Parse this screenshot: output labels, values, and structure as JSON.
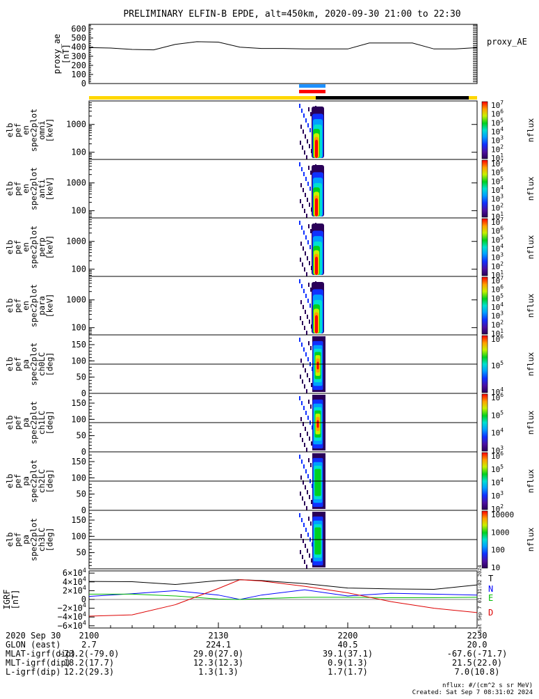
{
  "title": "PRELIMINARY ELFIN-B EPDE, alt=450km, 2020-09-30 21:00 to 22:30",
  "colors": {
    "state_yellow": "#FFD700",
    "state_black": "#000000",
    "bar_blue": "#1E90FF",
    "bar_red": "#FF0000",
    "T": "#000000",
    "N": "#0000FF",
    "E": "#00BB00",
    "D": "#DD0000"
  },
  "chart_data": [
    {
      "type": "line",
      "panel": "proxy_ae",
      "ylabel_lines": [
        "proxy_ae",
        "[nT]"
      ],
      "legend": "proxy_AE",
      "ylim": [
        0,
        650
      ],
      "yticks": [
        "0",
        "100",
        "200",
        "300",
        "400",
        "500",
        "600"
      ],
      "x_minutes": [
        0,
        5,
        10,
        15,
        20,
        25,
        30,
        35,
        40,
        45,
        50,
        55,
        60,
        65,
        70,
        75,
        80,
        85,
        90
      ],
      "y": [
        395,
        390,
        375,
        370,
        430,
        460,
        455,
        400,
        385,
        385,
        380,
        380,
        380,
        445,
        445,
        445,
        380,
        380,
        395
      ]
    },
    {
      "type": "heatmap",
      "panel": "spec_omni",
      "ylabel_lines": [
        "elb",
        "pef",
        "en",
        "spec2plot",
        "omni",
        "[keV]"
      ],
      "yticks": [
        "100",
        "1000"
      ],
      "cbar_ticks": [
        "10^7",
        "10^6",
        "10^5",
        "10^4",
        "10^3",
        "10^2",
        "10^1"
      ],
      "cbar_label": "nflux"
    },
    {
      "type": "heatmap",
      "panel": "spec_anti",
      "ylabel_lines": [
        "elb",
        "pef",
        "en",
        "spec2plot",
        "anti",
        "[keV]"
      ],
      "yticks": [
        "100",
        "1000"
      ],
      "cbar_ticks": [
        "10^7",
        "10^6",
        "10^5",
        "10^4",
        "10^3",
        "10^2",
        "10^1"
      ],
      "cbar_label": "nflux"
    },
    {
      "type": "heatmap",
      "panel": "spec_perp",
      "ylabel_lines": [
        "elb",
        "pef",
        "en",
        "spec2plot",
        "perp",
        "[keV]"
      ],
      "yticks": [
        "100",
        "1000"
      ],
      "cbar_ticks": [
        "10^7",
        "10^6",
        "10^5",
        "10^4",
        "10^3",
        "10^2",
        "10^1"
      ],
      "cbar_label": "nflux"
    },
    {
      "type": "heatmap",
      "panel": "spec_para",
      "ylabel_lines": [
        "elb",
        "pef",
        "en",
        "spec2plot",
        "para",
        "[keV]"
      ],
      "yticks": [
        "100",
        "1000"
      ],
      "cbar_ticks": [
        "10^7",
        "10^6",
        "10^5",
        "10^4",
        "10^3",
        "10^2",
        "10^1"
      ],
      "cbar_label": "nflux"
    },
    {
      "type": "heatmap",
      "panel": "pa_ch0LC",
      "ylabel_lines": [
        "elb",
        "pef",
        "pa",
        "spec2plot",
        "ch0LC",
        "[deg]"
      ],
      "yticks": [
        "0",
        "50",
        "100",
        "150"
      ],
      "cbar_ticks": [
        "10^6",
        "10^5",
        "10^4"
      ],
      "cbar_label": "nflux"
    },
    {
      "type": "heatmap",
      "panel": "pa_ch1LC",
      "ylabel_lines": [
        "elb",
        "pef",
        "pa",
        "spec2plot",
        "ch1LC",
        "[deg]"
      ],
      "yticks": [
        "0",
        "50",
        "100",
        "150"
      ],
      "cbar_ticks": [
        "10^6",
        "10^5",
        "10^4",
        "10^3"
      ],
      "cbar_label": "nflux"
    },
    {
      "type": "heatmap",
      "panel": "pa_ch2LC",
      "ylabel_lines": [
        "elb",
        "pef",
        "pa",
        "spec2plot",
        "ch2LC",
        "[deg]"
      ],
      "yticks": [
        "0",
        "50",
        "100",
        "150"
      ],
      "cbar_ticks": [
        "10^6",
        "10^5",
        "10^4",
        "10^3",
        "10^2"
      ],
      "cbar_label": "nflux"
    },
    {
      "type": "heatmap",
      "panel": "pa_ch3LC",
      "ylabel_lines": [
        "elb",
        "pef",
        "pa",
        "spec2plot",
        "ch3LC",
        "[deg]"
      ],
      "yticks": [
        "50",
        "100",
        "150"
      ],
      "cbar_ticks": [
        "10000",
        "1000",
        "100",
        "10"
      ],
      "cbar_label": "nflux"
    },
    {
      "type": "line",
      "panel": "igrf",
      "ylabel_lines": [
        "IGRF",
        "[nT]"
      ],
      "yticks": [
        "6×10^4",
        "4×10^4",
        "2×10^4",
        "0",
        "−2×10^4",
        "−4×10^4",
        "−6×10^4"
      ],
      "ylim": [
        -65000,
        65000
      ],
      "x_minutes": [
        0,
        10,
        20,
        30,
        35,
        40,
        50,
        60,
        70,
        80,
        90
      ],
      "series": [
        {
          "name": "T",
          "values": [
            41000,
            40500,
            34000,
            43000,
            45000,
            43000,
            36000,
            26000,
            24000,
            23000,
            33000
          ]
        },
        {
          "name": "N",
          "values": [
            7000,
            13000,
            20000,
            10000,
            0,
            10000,
            22000,
            8000,
            14000,
            12000,
            10000
          ]
        },
        {
          "name": "E",
          "values": [
            12000,
            12000,
            8000,
            1000,
            0,
            2000,
            5000,
            5000,
            4000,
            4000,
            5000
          ]
        },
        {
          "name": "D",
          "values": [
            -38000,
            -35000,
            -12000,
            25000,
            45000,
            42000,
            30000,
            15000,
            -5000,
            -20000,
            -30000
          ]
        }
      ]
    }
  ],
  "footer": {
    "row_labels": [
      "2020 Sep 30",
      "GLON (east)",
      "MLAT-igrf(dip)",
      "MLT-igrf(dip)",
      "L-igrf(dip)"
    ],
    "columns": [
      {
        "values": [
          "2100",
          "2.7",
          "-73.2(-79.0)",
          "18.2(17.7)",
          "12.2(29.3)"
        ]
      },
      {
        "values": [
          "2130",
          "224.1",
          "29.0(27.0)",
          "12.3(12.3)",
          "1.3(1.3)"
        ]
      },
      {
        "values": [
          "2200",
          "40.5",
          "39.1(37.1)",
          "0.9(1.3)",
          "1.7(1.7)"
        ]
      },
      {
        "values": [
          "2230",
          "20.0",
          "-67.6(-71.7)",
          "21.5(22.0)",
          "7.0(10.8)"
        ]
      }
    ],
    "nflux_units": "nflux: #/(cm^2 s sr MeV)",
    "created": "Created: Sat Sep  7 08:31:02 2024",
    "side_stamp": "Sat Sep  7 01:31:02 2024"
  }
}
